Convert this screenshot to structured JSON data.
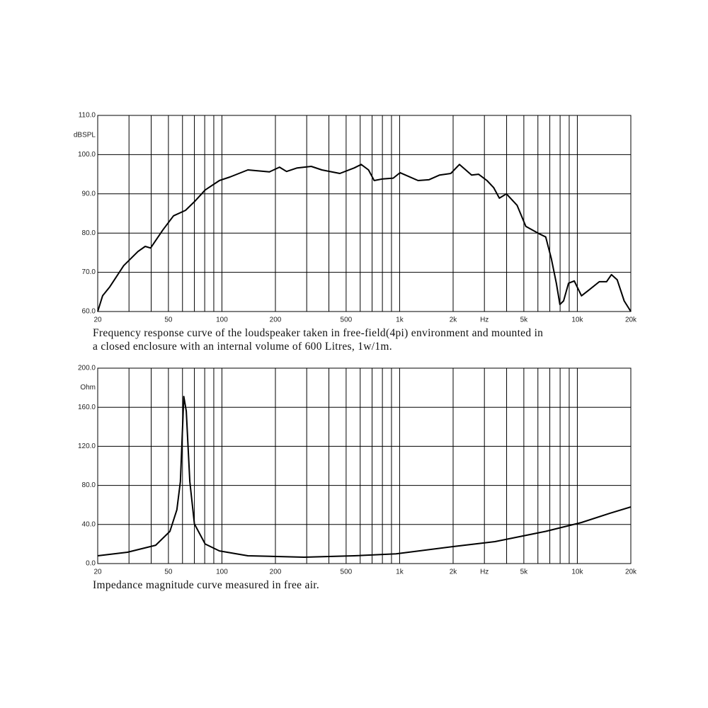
{
  "chart_data": [
    {
      "type": "line",
      "xscale": "log",
      "grid": true,
      "color": "#000000",
      "y_label": "dBSPL",
      "caption": [
        "Frequency response curve of the loudspeaker taken in free-field(4pi) environment and mounted in",
        "a closed enclosure  with an internal volume of 600 Litres, 1w/1m."
      ],
      "xlim": [
        20,
        20000
      ],
      "ylim": [
        60,
        110
      ],
      "yticks": [
        {
          "value": 60,
          "label": "60.0"
        },
        {
          "value": 70,
          "label": "70.0"
        },
        {
          "value": 80,
          "label": "80.0"
        },
        {
          "value": 90,
          "label": "90.0"
        },
        {
          "value": 100,
          "label": "100.0"
        },
        {
          "value": 110,
          "label": "110.0"
        }
      ],
      "xticks": [
        20,
        50,
        100,
        200,
        500,
        {
          "value": 1000,
          "label": "1k"
        },
        {
          "value": 2000,
          "label": "2k"
        },
        {
          "value": 3000,
          "label": "Hz"
        },
        {
          "value": 5000,
          "label": "5k"
        },
        {
          "value": 10000,
          "label": "10k"
        },
        {
          "value": 20000,
          "label": "20k"
        }
      ],
      "xgrid": [
        30,
        40,
        60,
        70,
        80,
        90,
        300,
        400,
        600,
        700,
        800,
        900,
        4000,
        6000,
        7000,
        8000,
        9000
      ],
      "x": [
        20,
        21.3,
        23.4,
        28,
        33.7,
        37,
        39.7,
        46.5,
        53.4,
        62.4,
        70,
        80.5,
        96.8,
        111,
        140,
        185,
        211,
        231,
        265,
        318,
        365,
        461,
        555,
        608,
        668,
        719,
        803,
        920,
        1006,
        1270,
        1460,
        1680,
        1940,
        2170,
        2540,
        2780,
        3100,
        3380,
        3640,
        3990,
        4580,
        5130,
        6060,
        6640,
        7140,
        7620,
        7980,
        8370,
        8920,
        9610,
        10550,
        11570,
        13300,
        14600,
        15550,
        16750,
        18350,
        20000
      ],
      "values": [
        60,
        64,
        66.3,
        71.7,
        75.3,
        76.6,
        76.2,
        80.8,
        84.4,
        85.8,
        88,
        91,
        93.4,
        94.3,
        96.1,
        95.6,
        96.8,
        95.7,
        96.6,
        97,
        96.1,
        95.2,
        96.6,
        97.5,
        96.1,
        93.4,
        93.8,
        94,
        95.4,
        93.4,
        93.6,
        94.8,
        95.2,
        97.5,
        94.8,
        95,
        93.4,
        91.6,
        88.9,
        90,
        87.1,
        81.7,
        79.9,
        79,
        73.5,
        67.2,
        61.8,
        62.7,
        67.2,
        67.8,
        64,
        65.4,
        67.6,
        67.6,
        69.4,
        68.1,
        62.7,
        60
      ]
    },
    {
      "type": "line",
      "xscale": "log",
      "grid": true,
      "color": "#000000",
      "y_label": "Ohm",
      "caption": [
        "Impedance magnitude curve measured in free air."
      ],
      "xlim": [
        20,
        20000
      ],
      "ylim": [
        0,
        200
      ],
      "yticks": [
        {
          "value": 0,
          "label": "0.0"
        },
        {
          "value": 40,
          "label": "40.0"
        },
        {
          "value": 80,
          "label": "80.0"
        },
        {
          "value": 120,
          "label": "120.0"
        },
        {
          "value": 160,
          "label": "160.0"
        },
        {
          "value": 200,
          "label": "200.0"
        }
      ],
      "xticks": [
        20,
        50,
        100,
        200,
        500,
        {
          "value": 1000,
          "label": "1k"
        },
        {
          "value": 2000,
          "label": "2k"
        },
        {
          "value": 3000,
          "label": "Hz"
        },
        {
          "value": 5000,
          "label": "5k"
        },
        {
          "value": 10000,
          "label": "10k"
        },
        {
          "value": 20000,
          "label": "20k"
        }
      ],
      "xgrid": [
        30,
        40,
        60,
        70,
        80,
        90,
        300,
        400,
        600,
        700,
        800,
        900,
        4000,
        6000,
        7000,
        8000,
        9000
      ],
      "x": [
        20,
        29.4,
        42.4,
        51,
        55.8,
        58.4,
        61,
        63,
        66,
        70,
        80.5,
        96.8,
        140,
        290,
        555,
        955,
        2000,
        3440,
        6640,
        10550,
        15200,
        20000
      ],
      "values": [
        8,
        11.6,
        18.8,
        33,
        55,
        84,
        171,
        156,
        84,
        40.6,
        20,
        13,
        8,
        6.5,
        8,
        10,
        17.4,
        22.5,
        33,
        42,
        51.4,
        58
      ]
    }
  ]
}
